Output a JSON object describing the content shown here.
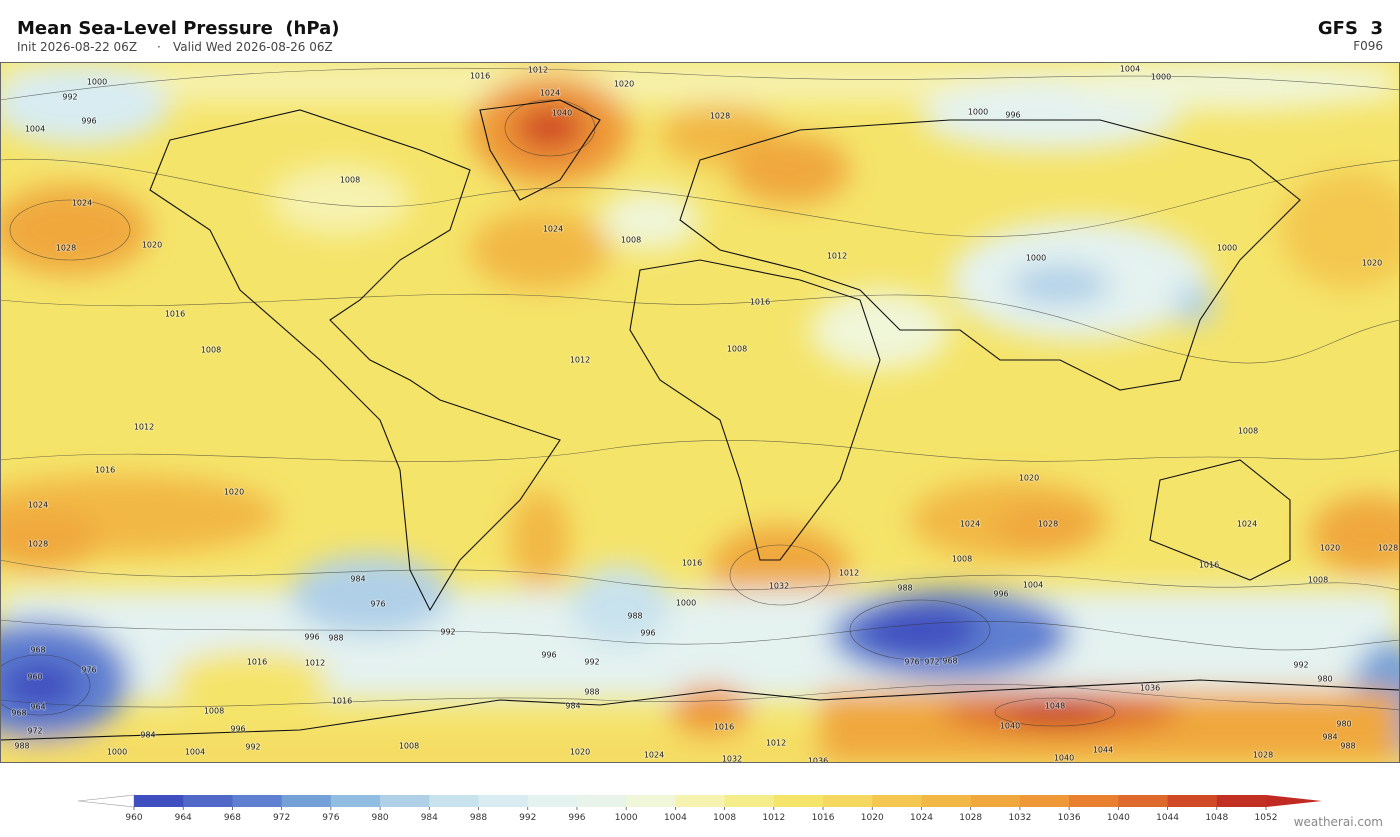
{
  "header": {
    "title": "Mean Sea-Level Pressure  (hPa)",
    "init": "Init 2026-08-22 06Z",
    "valid": "Valid Wed 2026-08-26 06Z",
    "model": "GFS  3",
    "forecast_hour": "F096"
  },
  "colorbar": {
    "ticks": [
      960,
      964,
      968,
      972,
      976,
      980,
      984,
      988,
      992,
      996,
      1000,
      1004,
      1008,
      1012,
      1016,
      1020,
      1024,
      1028,
      1032,
      1036,
      1040,
      1044,
      1048,
      1052
    ],
    "colors": [
      "#3f4fc0",
      "#5068c8",
      "#5f7fd0",
      "#74a0d8",
      "#90bde0",
      "#b0d0e8",
      "#c8e2ee",
      "#d8ecf2",
      "#e4f2f0",
      "#e8f4ea",
      "#f0f6d8",
      "#f6f2b0",
      "#f5ec8a",
      "#f5e46a",
      "#f5d860",
      "#f4c850",
      "#f2b845",
      "#f0a83e",
      "#ee9838",
      "#e88030",
      "#dd6a2c",
      "#d04a28",
      "#c23024"
    ],
    "under_color": "#ffffff",
    "over_color": "#c02a22"
  },
  "map": {
    "isobar_labels": [
      1012,
      1016,
      1020,
      1000,
      992,
      996,
      1004,
      1024,
      1040,
      1028,
      1004,
      1000,
      1000,
      996,
      1008,
      1024,
      1028,
      1020,
      1016,
      1008,
      1024,
      1008,
      1012,
      1016,
      1008,
      1012,
      1000,
      1000,
      1020,
      1012,
      1016,
      1020,
      1024,
      1028,
      1020,
      1024,
      1028,
      1032,
      1016,
      1012,
      1008,
      1004,
      996,
      988,
      1000,
      984,
      976,
      988,
      996,
      992,
      996,
      988,
      996,
      992,
      988,
      984,
      1016,
      1012,
      1016,
      1008,
      996,
      984,
      992,
      1004,
      1000,
      968,
      976,
      960,
      964,
      968,
      972,
      988,
      1008,
      1020,
      1024,
      1012,
      1032,
      1036,
      1016,
      1044,
      1040,
      1028,
      1048,
      1040,
      1036,
      992,
      980,
      980,
      984,
      988,
      1008,
      1016,
      1020,
      1028,
      1024,
      1008,
      972,
      976,
      968
    ]
  },
  "footer": {
    "credit": "weatherai.com"
  }
}
